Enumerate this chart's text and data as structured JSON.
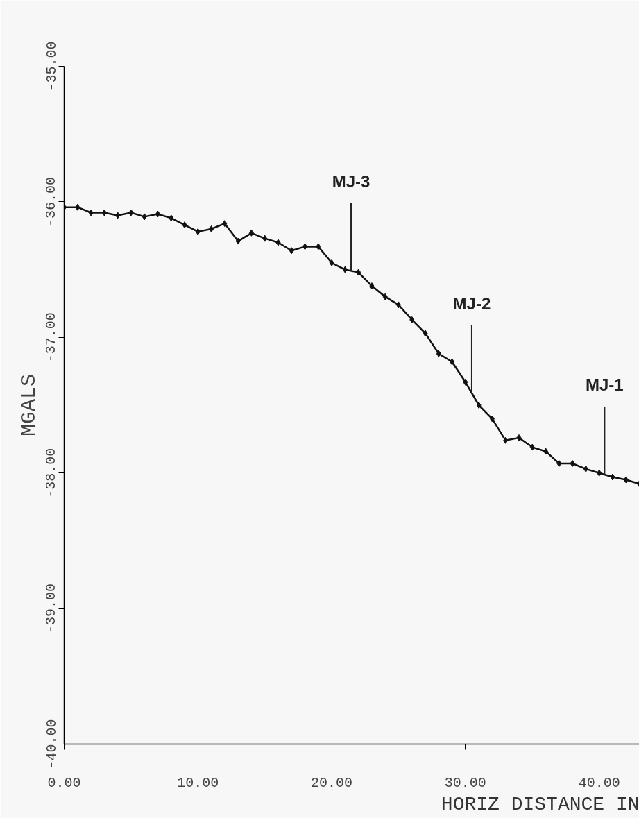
{
  "chart_data": {
    "type": "line",
    "xlabel": "HORIZ DISTANCE IN",
    "ylabel": "MGALS",
    "x": [
      0,
      1,
      2,
      3,
      4,
      5,
      6,
      7,
      8,
      9,
      10,
      11,
      12,
      13,
      14,
      15,
      16,
      17,
      18,
      19,
      20,
      21,
      22,
      23,
      24,
      25,
      26,
      27,
      28,
      29,
      30,
      31,
      32,
      33,
      34,
      35,
      36,
      37,
      38,
      39,
      40,
      41,
      42,
      43
    ],
    "series": [
      {
        "color": "#111111",
        "values": [
          -36.04,
          -36.04,
          -36.08,
          -36.08,
          -36.1,
          -36.08,
          -36.11,
          -36.09,
          -36.12,
          -36.17,
          -36.22,
          -36.2,
          -36.16,
          -36.29,
          -36.23,
          -36.27,
          -36.3,
          -36.36,
          -36.33,
          -36.33,
          -36.45,
          -36.5,
          -36.52,
          -36.62,
          -36.7,
          -36.76,
          -36.87,
          -36.97,
          -37.12,
          -37.18,
          -37.33,
          -37.5,
          -37.6,
          -37.76,
          -37.74,
          -37.81,
          -37.84,
          -37.93,
          -37.93,
          -37.97,
          -38.0,
          -38.03,
          -38.05,
          -38.08
        ]
      }
    ],
    "xlim": [
      0,
      43
    ],
    "xticks": [
      {
        "value": 0,
        "label": "0.00"
      },
      {
        "value": 10,
        "label": "10.00"
      },
      {
        "value": 20,
        "label": "20.00"
      },
      {
        "value": 30,
        "label": "30.00"
      },
      {
        "value": 40,
        "label": "40.00"
      }
    ],
    "ylim": [
      -40,
      -35
    ],
    "yticks": [
      {
        "value": -40,
        "label": "-40.00"
      },
      {
        "value": -39,
        "label": "-39.00"
      },
      {
        "value": -38,
        "label": "-38.00"
      },
      {
        "value": -37,
        "label": "-37.00"
      },
      {
        "value": -36,
        "label": "-36.00"
      },
      {
        "value": -35,
        "label": "-35.00"
      }
    ],
    "annotations": [
      {
        "text": "MJ-3",
        "x": 21.45,
        "y": -36.51
      },
      {
        "text": "MJ-2",
        "x": 30.47,
        "y": -37.41
      },
      {
        "text": "MJ-1",
        "x": 40.4,
        "y": -38.01
      }
    ],
    "grid": false,
    "marker": "diamond",
    "line_style": "solid"
  }
}
